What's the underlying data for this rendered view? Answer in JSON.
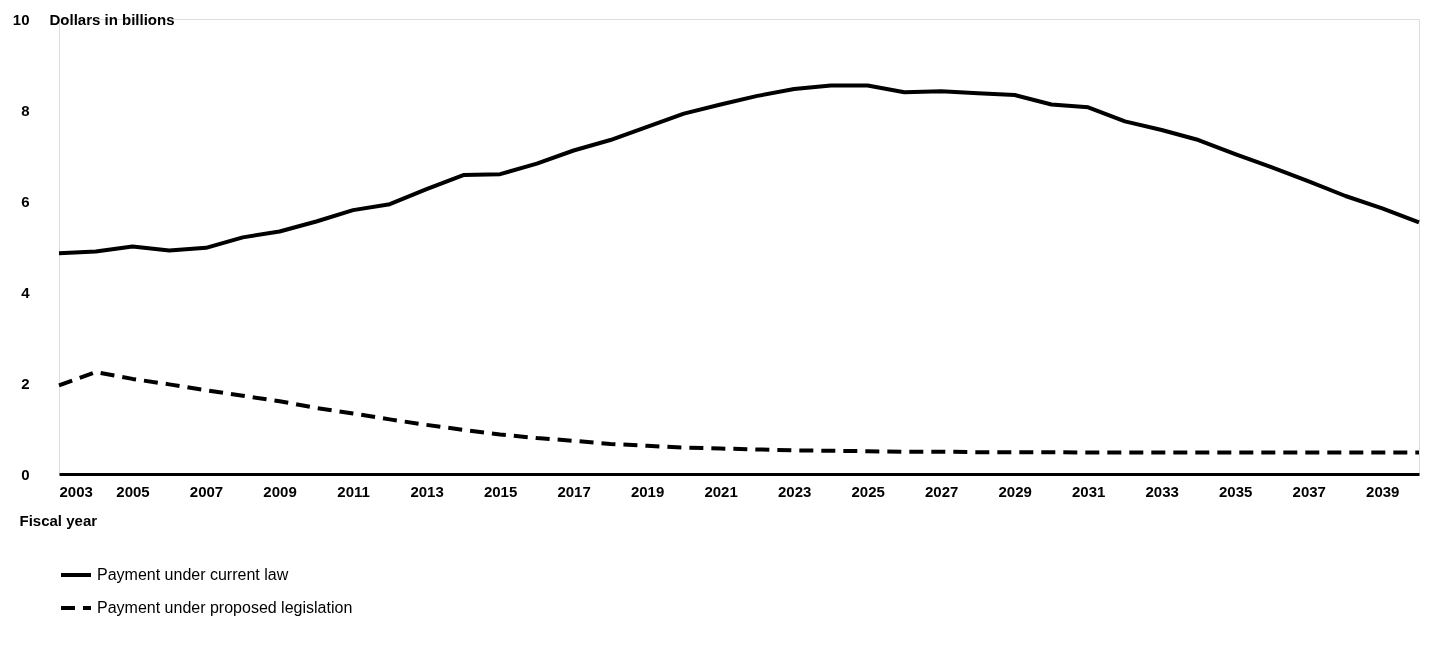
{
  "chart_data": {
    "type": "line",
    "ylabel": "Dollars in billions",
    "xlabel": "Fiscal year",
    "x": [
      2003,
      2004,
      2005,
      2006,
      2007,
      2008,
      2009,
      2010,
      2011,
      2012,
      2013,
      2014,
      2015,
      2016,
      2017,
      2018,
      2019,
      2020,
      2021,
      2022,
      2023,
      2024,
      2025,
      2026,
      2027,
      2028,
      2029,
      2030,
      2031,
      2032,
      2033,
      2034,
      2035,
      2036,
      2037,
      2038,
      2039,
      2040
    ],
    "series": [
      {
        "name": "Payment under current law",
        "color": "#000000",
        "line_style": "solid",
        "values": [
          4.85,
          4.89,
          5.0,
          4.91,
          4.97,
          5.2,
          5.33,
          5.55,
          5.8,
          5.93,
          6.26,
          6.57,
          6.59,
          6.82,
          7.11,
          7.34,
          7.63,
          7.92,
          8.12,
          8.31,
          8.46,
          8.54,
          8.54,
          8.39,
          8.41,
          8.37,
          8.33,
          8.12,
          8.06,
          7.75,
          7.56,
          7.34,
          7.03,
          6.74,
          6.43,
          6.11,
          5.84,
          5.53
        ]
      },
      {
        "name": "Payment under proposed legislation",
        "color": "#000000",
        "line_style": "dashed",
        "values": [
          1.95,
          2.24,
          2.09,
          1.97,
          1.84,
          1.72,
          1.6,
          1.45,
          1.33,
          1.2,
          1.08,
          0.97,
          0.87,
          0.79,
          0.73,
          0.66,
          0.62,
          0.58,
          0.56,
          0.54,
          0.52,
          0.51,
          0.5,
          0.49,
          0.49,
          0.48,
          0.48,
          0.48,
          0.47,
          0.47,
          0.47,
          0.47,
          0.47,
          0.47,
          0.47,
          0.47,
          0.47,
          0.47
        ]
      }
    ],
    "xlim": [
      2003,
      2040
    ],
    "xticks": [
      2003,
      2005,
      2007,
      2009,
      2011,
      2013,
      2015,
      2017,
      2019,
      2021,
      2023,
      2025,
      2027,
      2029,
      2031,
      2033,
      2035,
      2037,
      2039
    ],
    "ylim": [
      0,
      10
    ],
    "yticks": [
      0,
      2,
      4,
      6,
      8,
      10
    ],
    "grid": false,
    "legend": "bottom",
    "marker": "none"
  }
}
